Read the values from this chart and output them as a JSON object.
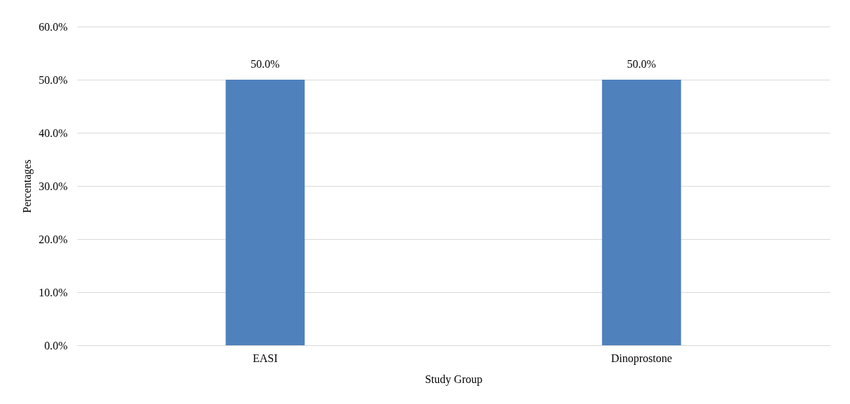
{
  "chart_data": {
    "type": "bar",
    "xlabel": "Study Group",
    "ylabel": "Percentages",
    "categories": [
      "EASI",
      "Dinoprostone"
    ],
    "values": [
      50.0,
      50.0
    ],
    "color": "#4f81bd",
    "value_labels": [
      "50.0%",
      "50.0%"
    ],
    "ylim": [
      0,
      60
    ],
    "yticks": [
      {
        "value": 0,
        "label": "0.0%"
      },
      {
        "value": 10,
        "label": "10.0%"
      },
      {
        "value": 20,
        "label": "20.0%"
      },
      {
        "value": 30,
        "label": "30.0%"
      },
      {
        "value": 40,
        "label": "40.0%"
      },
      {
        "value": 50,
        "label": "50.0%"
      },
      {
        "value": 60,
        "label": "60.0%"
      }
    ],
    "grid": "y"
  }
}
